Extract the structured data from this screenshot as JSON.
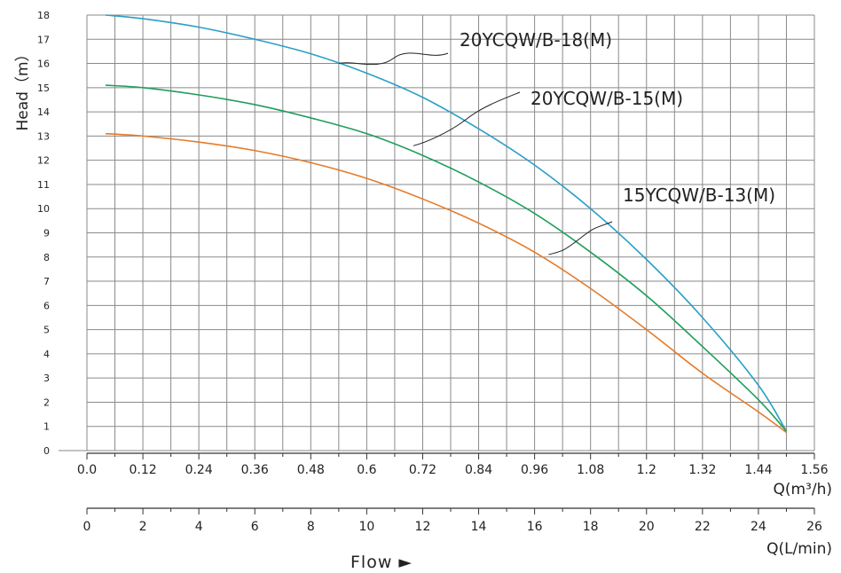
{
  "chart_data": {
    "type": "line",
    "ylabel": "Head（m）",
    "xlabel": "Q(m³/h)",
    "x2label": "Q(L/min)",
    "flow_label": "Flow ►",
    "xlim": [
      0,
      1.56
    ],
    "ylim": [
      0,
      18
    ],
    "x2lim": [
      0,
      26
    ],
    "grid": true,
    "x_ticks": [
      "0.0",
      "0.12",
      "0.24",
      "0.36",
      "0.48",
      "0.6",
      "0.72",
      "0.84",
      "0.96",
      "1.08",
      "1.2",
      "1.32",
      "1.44",
      "1.56"
    ],
    "x2_ticks": [
      "0",
      "2",
      "4",
      "6",
      "8",
      "10",
      "12",
      "14",
      "16",
      "18",
      "20",
      "22",
      "24",
      "26"
    ],
    "y_ticks": [
      "0",
      "1",
      "2",
      "3",
      "4",
      "5",
      "6",
      "7",
      "8",
      "9",
      "10",
      "11",
      "12",
      "13",
      "14",
      "15",
      "16",
      "17",
      "18"
    ],
    "series": [
      {
        "name": "20YCQW/B-18(M)",
        "color": "#2a9fc7",
        "points": [
          [
            0.04,
            18.0
          ],
          [
            0.12,
            17.85
          ],
          [
            0.24,
            17.5
          ],
          [
            0.36,
            17.0
          ],
          [
            0.48,
            16.4
          ],
          [
            0.6,
            15.6
          ],
          [
            0.72,
            14.6
          ],
          [
            0.84,
            13.3
          ],
          [
            0.96,
            11.8
          ],
          [
            1.08,
            10.0
          ],
          [
            1.2,
            7.9
          ],
          [
            1.32,
            5.5
          ],
          [
            1.44,
            2.7
          ],
          [
            1.5,
            0.8
          ]
        ]
      },
      {
        "name": "20YCQW/B-15(M)",
        "color": "#1e9e5a",
        "points": [
          [
            0.04,
            15.1
          ],
          [
            0.12,
            15.0
          ],
          [
            0.24,
            14.7
          ],
          [
            0.36,
            14.3
          ],
          [
            0.48,
            13.75
          ],
          [
            0.6,
            13.1
          ],
          [
            0.72,
            12.2
          ],
          [
            0.84,
            11.1
          ],
          [
            0.96,
            9.8
          ],
          [
            1.08,
            8.2
          ],
          [
            1.2,
            6.4
          ],
          [
            1.32,
            4.3
          ],
          [
            1.44,
            2.1
          ],
          [
            1.5,
            0.8
          ]
        ]
      },
      {
        "name": "15YCQW/B-13(M)",
        "color": "#e47b2a",
        "points": [
          [
            0.04,
            13.1
          ],
          [
            0.12,
            13.0
          ],
          [
            0.24,
            12.75
          ],
          [
            0.36,
            12.4
          ],
          [
            0.48,
            11.9
          ],
          [
            0.6,
            11.25
          ],
          [
            0.72,
            10.4
          ],
          [
            0.84,
            9.4
          ],
          [
            0.96,
            8.2
          ],
          [
            1.08,
            6.7
          ],
          [
            1.2,
            5.0
          ],
          [
            1.32,
            3.2
          ],
          [
            1.44,
            1.6
          ],
          [
            1.5,
            0.75
          ]
        ]
      }
    ]
  }
}
